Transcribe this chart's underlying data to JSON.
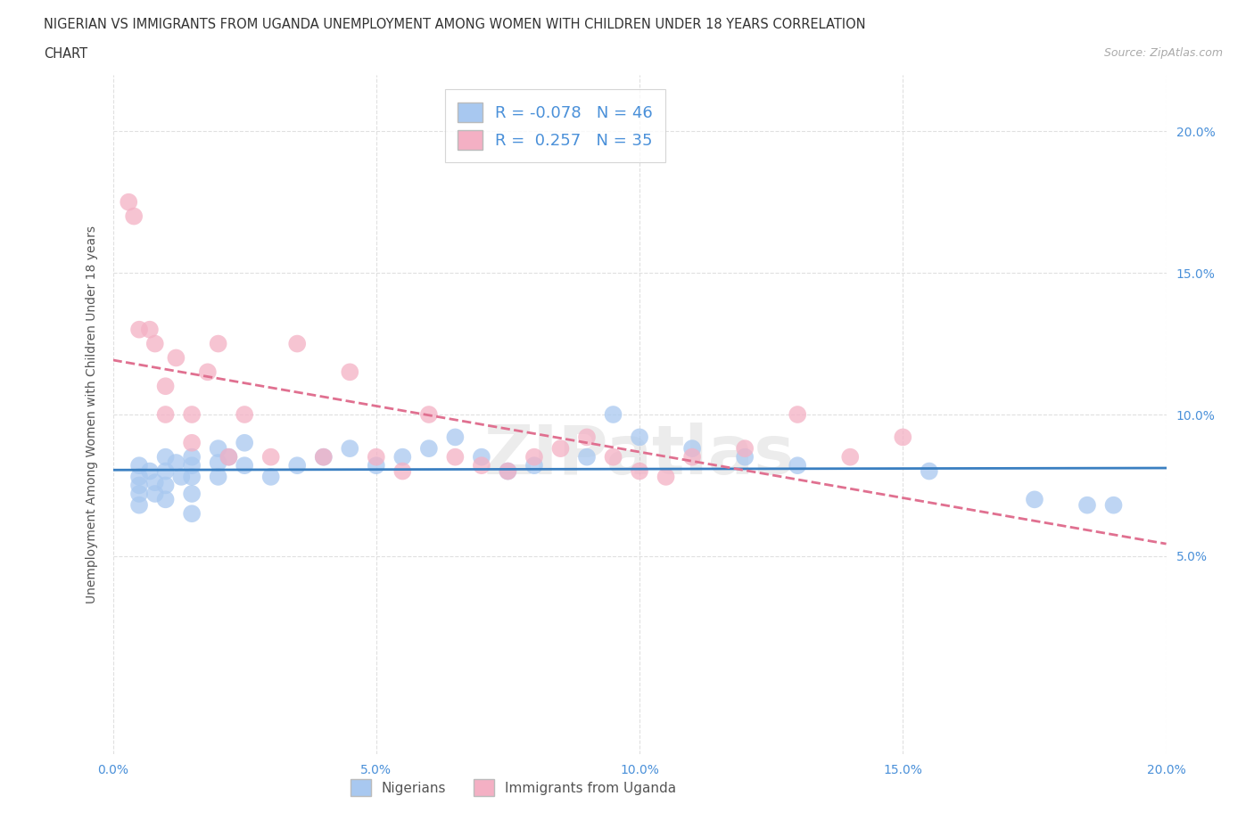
{
  "title_line1": "NIGERIAN VS IMMIGRANTS FROM UGANDA UNEMPLOYMENT AMONG WOMEN WITH CHILDREN UNDER 18 YEARS CORRELATION",
  "title_line2": "CHART",
  "source": "Source: ZipAtlas.com",
  "ylabel": "Unemployment Among Women with Children Under 18 years",
  "xlim": [
    0.0,
    0.2
  ],
  "ylim": [
    -0.02,
    0.22
  ],
  "xticks": [
    0.0,
    0.05,
    0.1,
    0.15,
    0.2
  ],
  "yticks": [
    0.05,
    0.1,
    0.15,
    0.2
  ],
  "xticklabels": [
    "0.0%",
    "5.0%",
    "10.0%",
    "15.0%",
    "20.0%"
  ],
  "yticklabels": [
    "5.0%",
    "10.0%",
    "15.0%",
    "20.0%"
  ],
  "blue_R": -0.078,
  "blue_N": 46,
  "pink_R": 0.257,
  "pink_N": 35,
  "blue_color": "#a8c8f0",
  "pink_color": "#f4b0c4",
  "blue_line_color": "#3a7fc1",
  "pink_line_color": "#e07090",
  "blue_scatter_x": [
    0.005,
    0.005,
    0.005,
    0.005,
    0.005,
    0.007,
    0.008,
    0.008,
    0.01,
    0.01,
    0.01,
    0.01,
    0.012,
    0.013,
    0.015,
    0.015,
    0.015,
    0.015,
    0.015,
    0.02,
    0.02,
    0.02,
    0.022,
    0.025,
    0.025,
    0.03,
    0.035,
    0.04,
    0.045,
    0.05,
    0.055,
    0.06,
    0.065,
    0.07,
    0.075,
    0.08,
    0.09,
    0.095,
    0.1,
    0.11,
    0.12,
    0.13,
    0.155,
    0.175,
    0.185,
    0.19
  ],
  "blue_scatter_y": [
    0.082,
    0.078,
    0.075,
    0.072,
    0.068,
    0.08,
    0.076,
    0.072,
    0.085,
    0.08,
    0.075,
    0.07,
    0.083,
    0.078,
    0.085,
    0.082,
    0.078,
    0.072,
    0.065,
    0.088,
    0.083,
    0.078,
    0.085,
    0.09,
    0.082,
    0.078,
    0.082,
    0.085,
    0.088,
    0.082,
    0.085,
    0.088,
    0.092,
    0.085,
    0.08,
    0.082,
    0.085,
    0.1,
    0.092,
    0.088,
    0.085,
    0.082,
    0.08,
    0.07,
    0.068,
    0.068
  ],
  "pink_scatter_x": [
    0.003,
    0.004,
    0.005,
    0.007,
    0.008,
    0.01,
    0.01,
    0.012,
    0.015,
    0.015,
    0.018,
    0.02,
    0.022,
    0.025,
    0.03,
    0.035,
    0.04,
    0.045,
    0.05,
    0.055,
    0.06,
    0.065,
    0.07,
    0.075,
    0.08,
    0.085,
    0.09,
    0.095,
    0.1,
    0.105,
    0.11,
    0.12,
    0.13,
    0.14,
    0.15
  ],
  "pink_scatter_y": [
    0.175,
    0.17,
    0.13,
    0.13,
    0.125,
    0.11,
    0.1,
    0.12,
    0.1,
    0.09,
    0.115,
    0.125,
    0.085,
    0.1,
    0.085,
    0.125,
    0.085,
    0.115,
    0.085,
    0.08,
    0.1,
    0.085,
    0.082,
    0.08,
    0.085,
    0.088,
    0.092,
    0.085,
    0.08,
    0.078,
    0.085,
    0.088,
    0.1,
    0.085,
    0.092
  ],
  "background_color": "#ffffff",
  "grid_color": "#e0e0e0"
}
